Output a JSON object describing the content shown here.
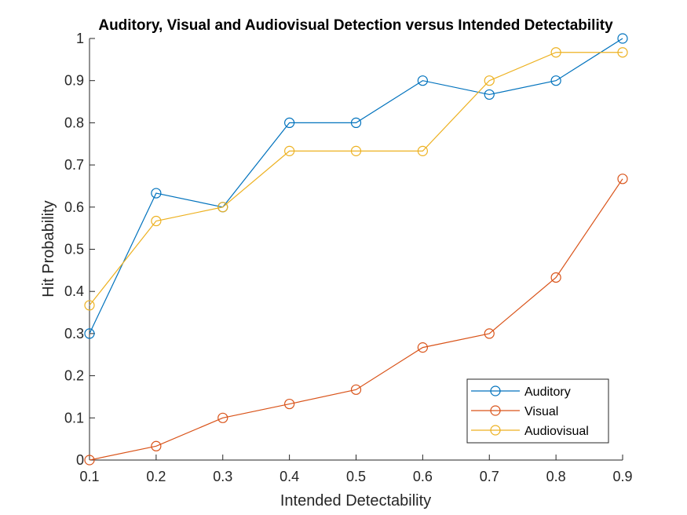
{
  "chart_data": {
    "type": "line",
    "title": "Auditory, Visual and Audiovisual Detection versus Intended Detectability",
    "xlabel": "Intended Detectability",
    "ylabel": "Hit Probability",
    "x": [
      0.1,
      0.2,
      0.3,
      0.4,
      0.5,
      0.6,
      0.7,
      0.8,
      0.9
    ],
    "xlim": [
      0.1,
      0.9
    ],
    "ylim": [
      0,
      1
    ],
    "xticks": [
      0.1,
      0.2,
      0.3,
      0.4,
      0.5,
      0.6,
      0.7,
      0.8,
      0.9
    ],
    "yticks": [
      0,
      0.1,
      0.2,
      0.3,
      0.4,
      0.5,
      0.6,
      0.7,
      0.8,
      0.9,
      1
    ],
    "xtick_labels": [
      "0.1",
      "0.2",
      "0.3",
      "0.4",
      "0.5",
      "0.6",
      "0.7",
      "0.8",
      "0.9"
    ],
    "ytick_labels": [
      "0",
      "0.1",
      "0.2",
      "0.3",
      "0.4",
      "0.5",
      "0.6",
      "0.7",
      "0.8",
      "0.9",
      "1"
    ],
    "grid": false,
    "legend_position": "bottom-right",
    "marker": "open-circle",
    "series": [
      {
        "name": "Auditory",
        "color": "#0072BD",
        "values": [
          0.3,
          0.633,
          0.6,
          0.8,
          0.8,
          0.9,
          0.867,
          0.9,
          1.0
        ]
      },
      {
        "name": "Visual",
        "color": "#D95319",
        "values": [
          0.0,
          0.033,
          0.1,
          0.133,
          0.167,
          0.267,
          0.3,
          0.433,
          0.667
        ]
      },
      {
        "name": "Audiovisual",
        "color": "#EDB120",
        "values": [
          0.367,
          0.567,
          0.6,
          0.733,
          0.733,
          0.733,
          0.9,
          0.967,
          0.967
        ]
      }
    ]
  }
}
